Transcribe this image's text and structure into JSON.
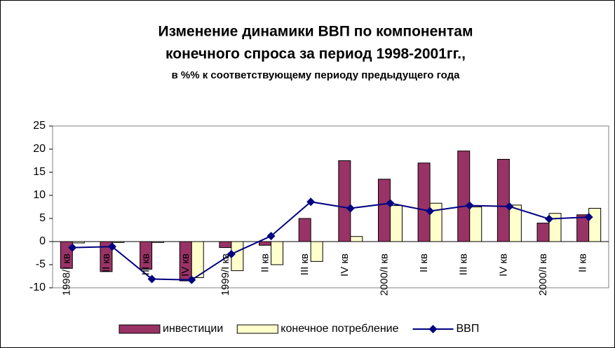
{
  "chart_data": {
    "type": "bar_line",
    "title": "Изменение динамики ВВП по компонентам",
    "title_line2": "конечного спроса за период 1998-2001гг.,",
    "subtitle": "в %% к соответствующему периоду предыдущего года",
    "categories": [
      "1998/I кв",
      "II кв",
      "III кв",
      "IV кв",
      "1999/I кв",
      "II кв",
      "III кв",
      "IV кв",
      "2000/I кв",
      "II кв",
      "III кв",
      "IV кв",
      "2000/I кв",
      "II кв"
    ],
    "series": [
      {
        "name": "инвестиции",
        "type": "bar",
        "color": "#993366",
        "values": [
          -5.8,
          -6.5,
          -6,
          -8.5,
          -1.3,
          -0.8,
          5,
          17.5,
          13.5,
          17,
          19.6,
          17.8,
          4,
          5.8
        ]
      },
      {
        "name": "конечное потребление",
        "type": "bar",
        "color": "#ffffcc",
        "values": [
          -0.3,
          -0.2,
          -0.2,
          -7.8,
          -6.3,
          -5,
          -4.3,
          1.1,
          7.8,
          8.3,
          7.5,
          7.9,
          6.1,
          7.2
        ]
      },
      {
        "name": "ВВП",
        "type": "line",
        "color": "#000080",
        "values": [
          -1.3,
          -1.1,
          -8.1,
          -8.3,
          -2.7,
          1.2,
          8.6,
          7.2,
          8.3,
          6.6,
          7.8,
          7.6,
          4.9,
          5.3
        ]
      }
    ],
    "ylim": [
      -10,
      25
    ],
    "yticks": [
      -10,
      -5,
      0,
      5,
      10,
      15,
      20,
      25
    ]
  }
}
